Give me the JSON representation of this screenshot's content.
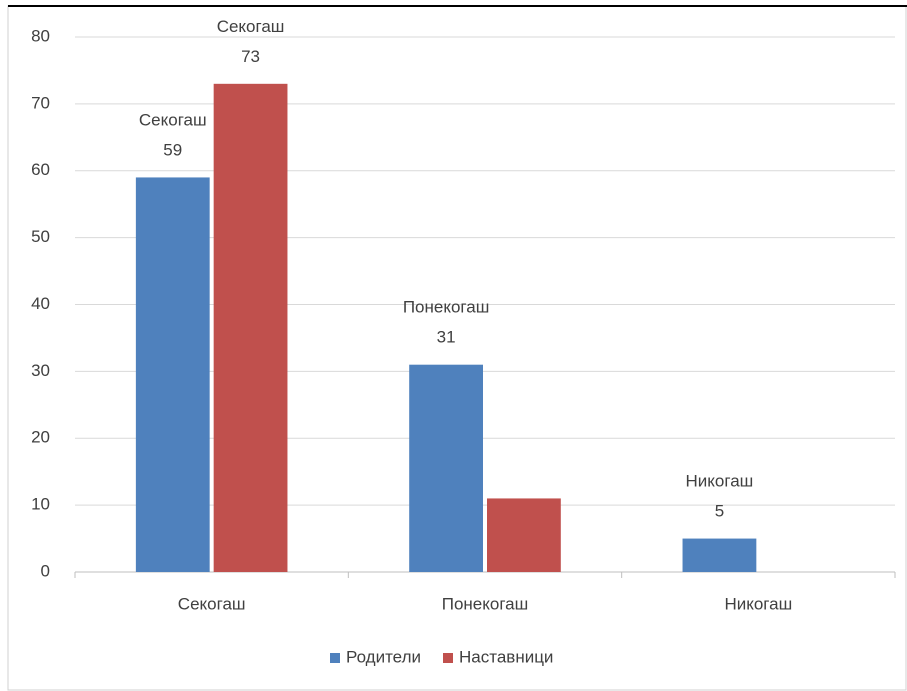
{
  "chart_data": {
    "type": "bar",
    "categories": [
      "Секогаш",
      "Понекогаш",
      "Никогаш"
    ],
    "series": [
      {
        "name": "Родители",
        "color": "#4f81bd",
        "values": [
          59,
          31,
          5
        ],
        "value_labels": [
          "Секогаш\n59",
          "Понекогаш\n31",
          "Никогаш\n5"
        ]
      },
      {
        "name": "Наставници",
        "color": "#c0504d",
        "values": [
          73,
          11,
          null
        ],
        "value_labels": [
          "Секогаш\n73",
          null,
          null
        ]
      }
    ],
    "ylim": [
      0,
      80
    ],
    "yticks": [
      0,
      10,
      20,
      30,
      40,
      50,
      60,
      70,
      80
    ],
    "grid": true,
    "legend": "bottom"
  }
}
